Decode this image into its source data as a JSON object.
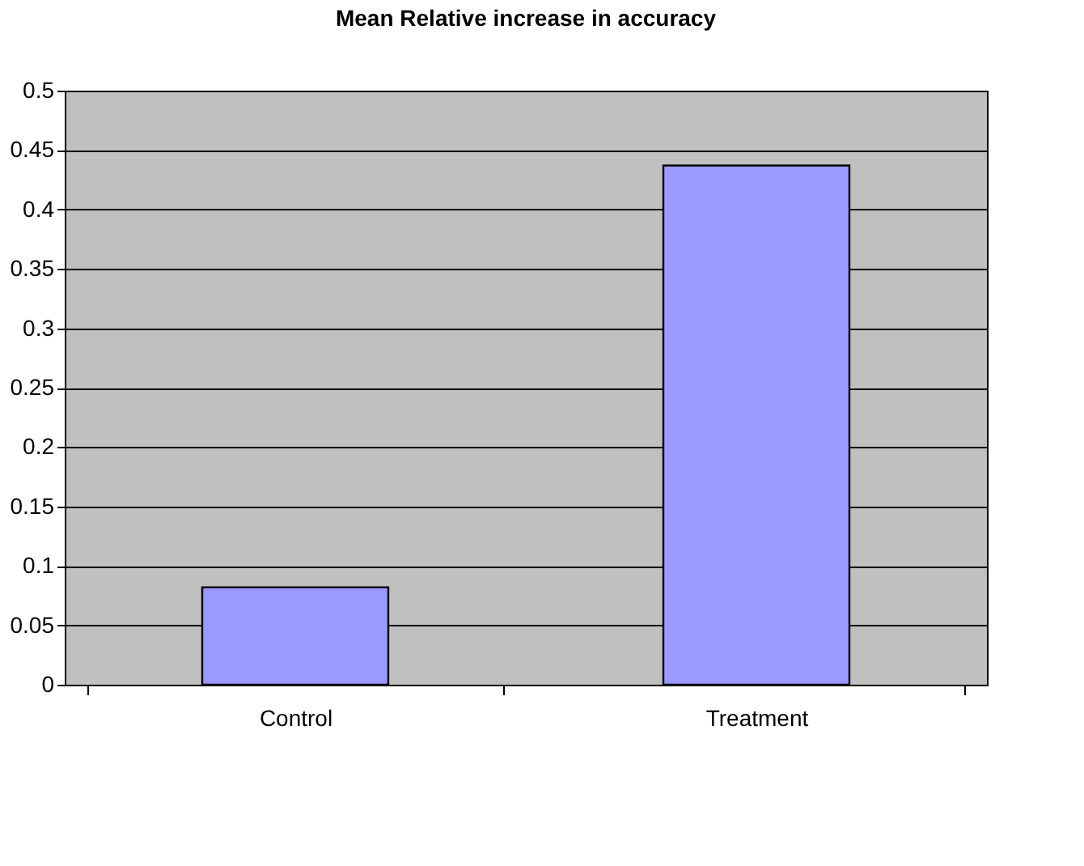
{
  "chart_data": {
    "type": "bar",
    "title": "Mean Relative increase in accuracy",
    "categories": [
      "Control",
      "Treatment"
    ],
    "values": [
      0.082,
      0.437
    ],
    "color": "#9999ff",
    "ylim": [
      0,
      0.5
    ],
    "yticks": [
      0,
      0.05,
      0.1,
      0.15,
      0.2,
      0.25,
      0.3,
      0.35,
      0.4,
      0.45,
      0.5
    ],
    "grid": "y"
  }
}
